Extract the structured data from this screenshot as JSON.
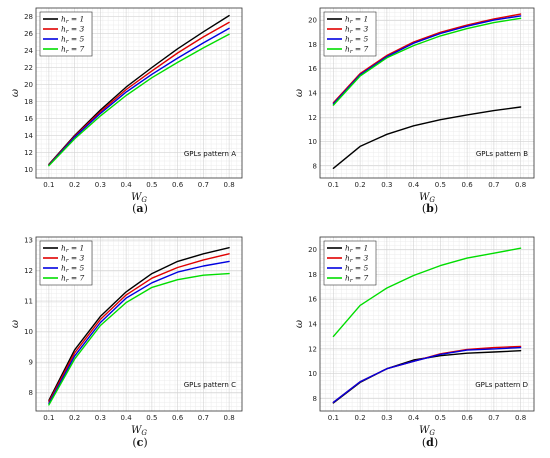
{
  "chart_data": [
    {
      "type": "line",
      "panel_label": "(a)",
      "xlabel": "W_G",
      "ylabel": "ω",
      "annotation": "GPLs pattern A",
      "xlim": [
        0.05,
        0.85
      ],
      "ylim": [
        9,
        29
      ],
      "xticks": [
        0.1,
        0.2,
        0.3,
        0.4,
        0.5,
        0.6,
        0.7,
        0.8
      ],
      "yticks": [
        10,
        12,
        14,
        16,
        18,
        20,
        22,
        24,
        26,
        28
      ],
      "legend_position": "top-left",
      "grid": true,
      "x": [
        0.1,
        0.2,
        0.3,
        0.4,
        0.5,
        0.6,
        0.7,
        0.8
      ],
      "series": [
        {
          "name": "h_r = 1",
          "color": "#000000",
          "values": [
            10.6,
            14.0,
            17.0,
            19.7,
            22.0,
            24.2,
            26.2,
            28.1
          ]
        },
        {
          "name": "h_r = 3",
          "color": "#e00000",
          "values": [
            10.55,
            13.9,
            16.8,
            19.4,
            21.6,
            23.7,
            25.6,
            27.3
          ]
        },
        {
          "name": "h_r = 5",
          "color": "#0000e0",
          "values": [
            10.5,
            13.8,
            16.6,
            19.1,
            21.2,
            23.1,
            24.9,
            26.6
          ]
        },
        {
          "name": "h_r = 7",
          "color": "#00dd00",
          "values": [
            10.45,
            13.6,
            16.3,
            18.7,
            20.8,
            22.6,
            24.3,
            25.9
          ]
        }
      ]
    },
    {
      "type": "line",
      "panel_label": "(b)",
      "xlabel": "W_G",
      "ylabel": "ω",
      "annotation": "GPLs pattern B",
      "xlim": [
        0.05,
        0.85
      ],
      "ylim": [
        7,
        21
      ],
      "xticks": [
        0.1,
        0.2,
        0.3,
        0.4,
        0.5,
        0.6,
        0.7,
        0.8
      ],
      "yticks": [
        8,
        10,
        12,
        14,
        16,
        18,
        20
      ],
      "legend_position": "top-left",
      "grid": true,
      "x": [
        0.1,
        0.2,
        0.3,
        0.4,
        0.5,
        0.6,
        0.7,
        0.8
      ],
      "series": [
        {
          "name": "h_r = 1",
          "color": "#000000",
          "values": [
            7.8,
            9.6,
            10.6,
            11.3,
            11.8,
            12.2,
            12.55,
            12.85
          ]
        },
        {
          "name": "h_r = 3",
          "color": "#e00000",
          "values": [
            13.2,
            15.6,
            17.1,
            18.2,
            19.0,
            19.6,
            20.1,
            20.5
          ]
        },
        {
          "name": "h_r = 5",
          "color": "#0000e0",
          "values": [
            13.1,
            15.5,
            17.0,
            18.1,
            18.9,
            19.5,
            20.0,
            20.35
          ]
        },
        {
          "name": "h_r = 7",
          "color": "#00dd00",
          "values": [
            13.0,
            15.4,
            16.9,
            17.9,
            18.7,
            19.3,
            19.8,
            20.15
          ]
        }
      ]
    },
    {
      "type": "line",
      "panel_label": "(c)",
      "xlabel": "W_G",
      "ylabel": "ω",
      "annotation": "GPLs pattern C",
      "xlim": [
        0.05,
        0.85
      ],
      "ylim": [
        7.4,
        13.1
      ],
      "xticks": [
        0.1,
        0.2,
        0.3,
        0.4,
        0.5,
        0.6,
        0.7,
        0.8
      ],
      "yticks": [
        8,
        9,
        10,
        11,
        12,
        13
      ],
      "legend_position": "top-left",
      "grid": true,
      "x": [
        0.1,
        0.2,
        0.3,
        0.4,
        0.5,
        0.6,
        0.7,
        0.8
      ],
      "series": [
        {
          "name": "h_r = 1",
          "color": "#000000",
          "values": [
            7.75,
            9.4,
            10.5,
            11.3,
            11.9,
            12.3,
            12.55,
            12.75
          ]
        },
        {
          "name": "h_r = 3",
          "color": "#e00000",
          "values": [
            7.7,
            9.3,
            10.4,
            11.2,
            11.75,
            12.1,
            12.35,
            12.55
          ]
        },
        {
          "name": "h_r = 5",
          "color": "#0000e0",
          "values": [
            7.65,
            9.2,
            10.3,
            11.1,
            11.6,
            11.95,
            12.15,
            12.3
          ]
        },
        {
          "name": "h_r = 7",
          "color": "#00dd00",
          "values": [
            7.6,
            9.1,
            10.2,
            10.95,
            11.45,
            11.7,
            11.85,
            11.9
          ]
        }
      ]
    },
    {
      "type": "line",
      "panel_label": "(d)",
      "xlabel": "W_G",
      "ylabel": "ω",
      "annotation": "GPLs pattern D",
      "xlim": [
        0.05,
        0.85
      ],
      "ylim": [
        7,
        21
      ],
      "xticks": [
        0.1,
        0.2,
        0.3,
        0.4,
        0.5,
        0.6,
        0.7,
        0.8
      ],
      "yticks": [
        8,
        10,
        12,
        14,
        16,
        18,
        20
      ],
      "legend_position": "top-left",
      "grid": true,
      "x": [
        0.1,
        0.2,
        0.3,
        0.4,
        0.5,
        0.6,
        0.7,
        0.8
      ],
      "series": [
        {
          "name": "h_r = 1",
          "color": "#000000",
          "values": [
            7.65,
            9.3,
            10.4,
            11.1,
            11.45,
            11.65,
            11.75,
            11.85
          ]
        },
        {
          "name": "h_r = 3",
          "color": "#e00000",
          "values": [
            7.7,
            9.35,
            10.4,
            11.0,
            11.6,
            11.95,
            12.1,
            12.2
          ]
        },
        {
          "name": "h_r = 5",
          "color": "#0000e0",
          "values": [
            7.7,
            9.35,
            10.4,
            11.0,
            11.55,
            11.9,
            12.0,
            12.1
          ]
        },
        {
          "name": "h_r = 7",
          "color": "#00dd00",
          "values": [
            13.0,
            15.5,
            16.9,
            17.9,
            18.7,
            19.3,
            19.7,
            20.1
          ]
        }
      ]
    }
  ]
}
